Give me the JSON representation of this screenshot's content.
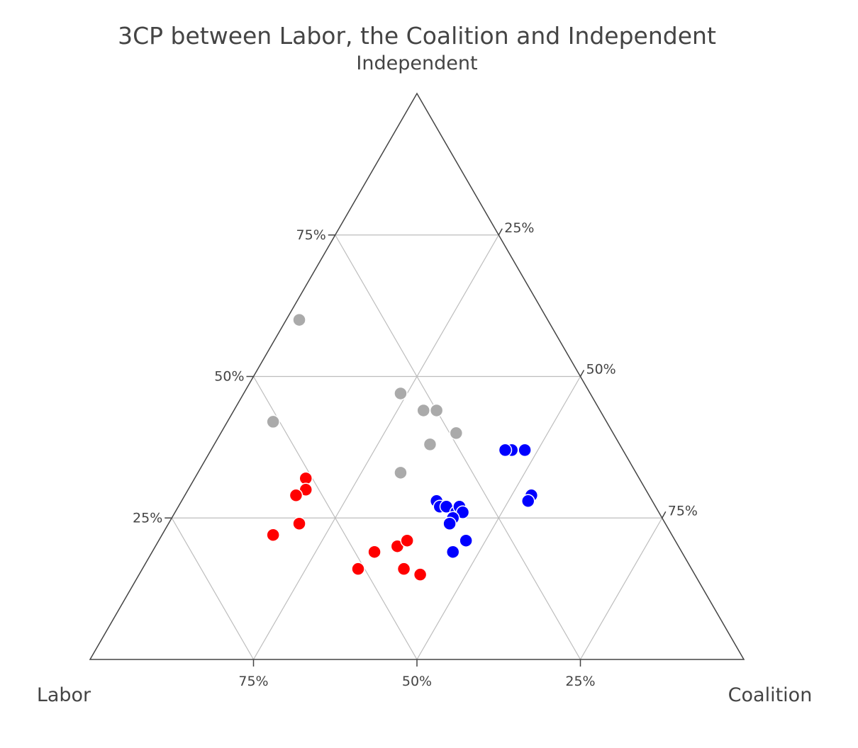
{
  "chart_data": {
    "type": "scatter",
    "subtype": "ternary",
    "title": "3CP between Labor, the Coalition and Independent",
    "axes": {
      "a": {
        "label": "Independent",
        "position": "top"
      },
      "b": {
        "label": "Labor",
        "position": "bottom-left"
      },
      "c": {
        "label": "Coalition",
        "position": "bottom-right"
      }
    },
    "ticks": {
      "a": [
        "25%",
        "50%",
        "75%"
      ],
      "b": [
        "75%",
        "50%",
        "25%"
      ],
      "c": [
        "25%",
        "50%",
        "75%"
      ]
    },
    "grid": true,
    "colors": {
      "labor": "#ff0000",
      "coalition": "#0000ff",
      "independent": "#aaaaaa",
      "frame": "#444444",
      "grid": "#bdbdbd"
    },
    "series": [
      {
        "color": "red",
        "points": [
          {
            "independent": 32,
            "labor": 51,
            "coalition": 17
          },
          {
            "independent": 30,
            "labor": 52,
            "coalition": 18
          },
          {
            "independent": 29,
            "labor": 54,
            "coalition": 17
          },
          {
            "independent": 24,
            "labor": 56,
            "coalition": 20
          },
          {
            "independent": 22,
            "labor": 61,
            "coalition": 17
          },
          {
            "independent": 16,
            "labor": 51,
            "coalition": 33
          },
          {
            "independent": 19,
            "labor": 47,
            "coalition": 34
          },
          {
            "independent": 16,
            "labor": 44,
            "coalition": 40
          },
          {
            "independent": 15,
            "labor": 42,
            "coalition": 43
          },
          {
            "independent": 20,
            "labor": 43,
            "coalition": 37
          },
          {
            "independent": 21,
            "labor": 41,
            "coalition": 38
          }
        ]
      },
      {
        "color": "blue",
        "points": [
          {
            "independent": 37,
            "labor": 17,
            "coalition": 46
          },
          {
            "independent": 37,
            "labor": 18,
            "coalition": 45
          },
          {
            "independent": 37,
            "labor": 15,
            "coalition": 48
          },
          {
            "independent": 29,
            "labor": 18,
            "coalition": 53
          },
          {
            "independent": 28,
            "labor": 19,
            "coalition": 53
          },
          {
            "independent": 28,
            "labor": 33,
            "coalition": 39
          },
          {
            "independent": 27,
            "labor": 33,
            "coalition": 40
          },
          {
            "independent": 27,
            "labor": 32,
            "coalition": 41
          },
          {
            "independent": 26,
            "labor": 31,
            "coalition": 43
          },
          {
            "independent": 27,
            "labor": 30,
            "coalition": 43
          },
          {
            "independent": 26,
            "labor": 30,
            "coalition": 44
          },
          {
            "independent": 25,
            "labor": 32,
            "coalition": 43
          },
          {
            "independent": 24,
            "labor": 33,
            "coalition": 43
          },
          {
            "independent": 21,
            "labor": 32,
            "coalition": 47
          },
          {
            "independent": 19,
            "labor": 35,
            "coalition": 46
          }
        ]
      },
      {
        "color": "gray",
        "points": [
          {
            "independent": 60,
            "labor": 38,
            "coalition": 2
          },
          {
            "independent": 42,
            "labor": 51,
            "coalition": 7
          },
          {
            "independent": 47,
            "labor": 29,
            "coalition": 24
          },
          {
            "independent": 44,
            "labor": 27,
            "coalition": 29
          },
          {
            "independent": 44,
            "labor": 25,
            "coalition": 31
          },
          {
            "independent": 40,
            "labor": 24,
            "coalition": 36
          },
          {
            "independent": 38,
            "labor": 29,
            "coalition": 33
          },
          {
            "independent": 33,
            "labor": 36,
            "coalition": 31
          }
        ]
      }
    ]
  }
}
